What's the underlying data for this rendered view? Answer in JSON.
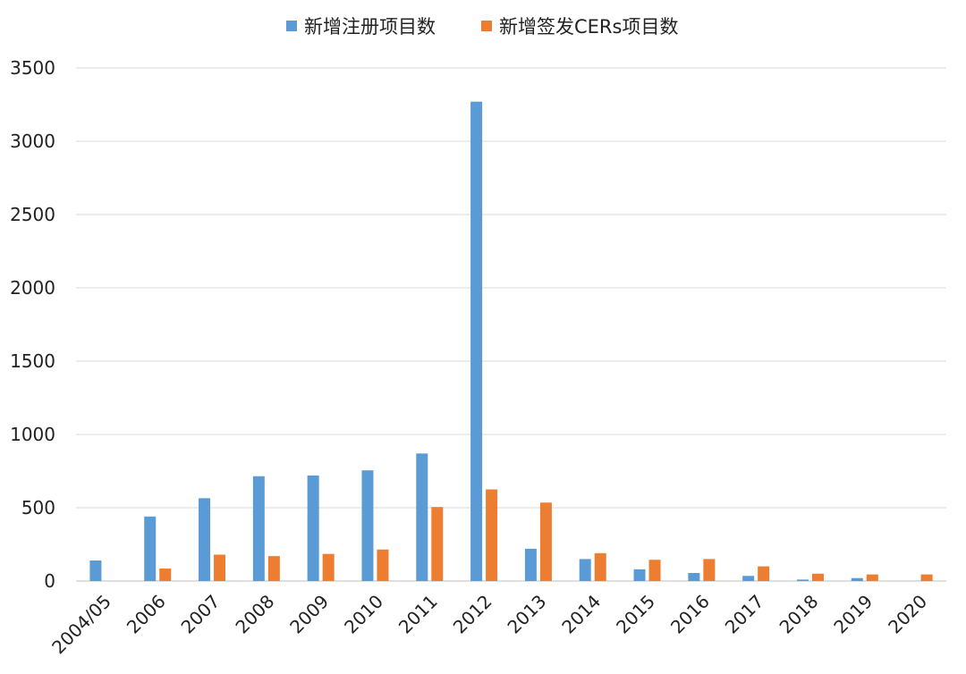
{
  "chart_data": {
    "type": "bar",
    "categories": [
      "2004/05",
      "2006",
      "2007",
      "2008",
      "2009",
      "2010",
      "2011",
      "2012",
      "2013",
      "2014",
      "2015",
      "2016",
      "2017",
      "2018",
      "2019",
      "2020"
    ],
    "series": [
      {
        "name": "新增注册项目数",
        "color": "#5b9bd5",
        "values": [
          140,
          440,
          565,
          715,
          720,
          755,
          870,
          3270,
          220,
          150,
          80,
          55,
          35,
          10,
          20,
          0
        ]
      },
      {
        "name": "新增签发CERs项目数",
        "color": "#ed7d31",
        "values": [
          0,
          85,
          180,
          170,
          185,
          215,
          505,
          625,
          535,
          190,
          145,
          150,
          100,
          50,
          45,
          45
        ]
      }
    ],
    "ylim": [
      0,
      3500
    ],
    "yticks": [
      0,
      500,
      1000,
      1500,
      2000,
      2500,
      3000,
      3500
    ],
    "grid": true,
    "legend_position": "top-center"
  }
}
